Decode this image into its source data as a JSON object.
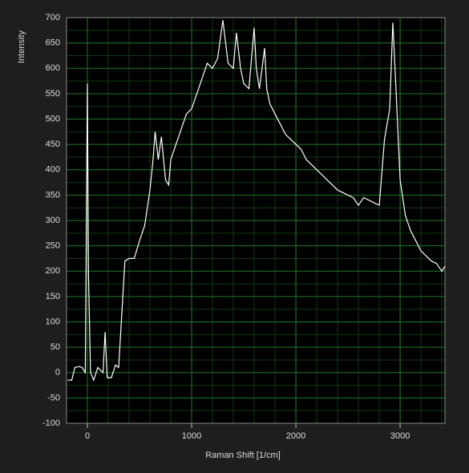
{
  "chart_data": {
    "type": "line",
    "x_label": "Raman Shift  [1/cm]",
    "y_label": "Intensity",
    "xlim": [
      -200,
      3430
    ],
    "ylim": [
      -100,
      700
    ],
    "xticks": [
      0,
      1000,
      2000,
      3000
    ],
    "yticks": [
      -100,
      -50,
      0,
      50,
      100,
      150,
      200,
      250,
      300,
      350,
      400,
      450,
      500,
      550,
      600,
      650,
      700
    ],
    "grid": true,
    "series": [
      {
        "color": "#ffffff",
        "x": [
          -190,
          -150,
          -120,
          -80,
          -50,
          -20,
          0,
          10,
          30,
          60,
          100,
          150,
          170,
          190,
          230,
          270,
          300,
          340,
          360,
          400,
          450,
          500,
          550,
          600,
          630,
          650,
          680,
          710,
          750,
          780,
          800,
          850,
          900,
          950,
          1000,
          1050,
          1100,
          1150,
          1200,
          1250,
          1300,
          1350,
          1400,
          1430,
          1470,
          1500,
          1550,
          1600,
          1620,
          1650,
          1700,
          1720,
          1750,
          1800,
          1850,
          1900,
          1950,
          2000,
          2050,
          2100,
          2150,
          2200,
          2250,
          2300,
          2350,
          2400,
          2450,
          2500,
          2550,
          2600,
          2650,
          2700,
          2750,
          2800,
          2850,
          2900,
          2930,
          2960,
          3000,
          3050,
          3100,
          3150,
          3200,
          3250,
          3300,
          3350,
          3400,
          3430
        ],
        "values": [
          -15,
          -15,
          10,
          12,
          10,
          0,
          570,
          200,
          0,
          -15,
          10,
          0,
          80,
          -10,
          -10,
          15,
          10,
          150,
          220,
          225,
          225,
          260,
          290,
          360,
          420,
          475,
          420,
          465,
          380,
          370,
          420,
          450,
          480,
          510,
          520,
          550,
          580,
          610,
          600,
          620,
          695,
          610,
          600,
          670,
          600,
          570,
          560,
          680,
          600,
          560,
          640,
          560,
          530,
          510,
          490,
          470,
          460,
          450,
          440,
          420,
          410,
          400,
          390,
          380,
          370,
          360,
          355,
          350,
          345,
          330,
          345,
          340,
          335,
          330,
          460,
          520,
          690,
          560,
          380,
          310,
          280,
          260,
          240,
          230,
          220,
          215,
          200,
          210
        ]
      }
    ]
  }
}
